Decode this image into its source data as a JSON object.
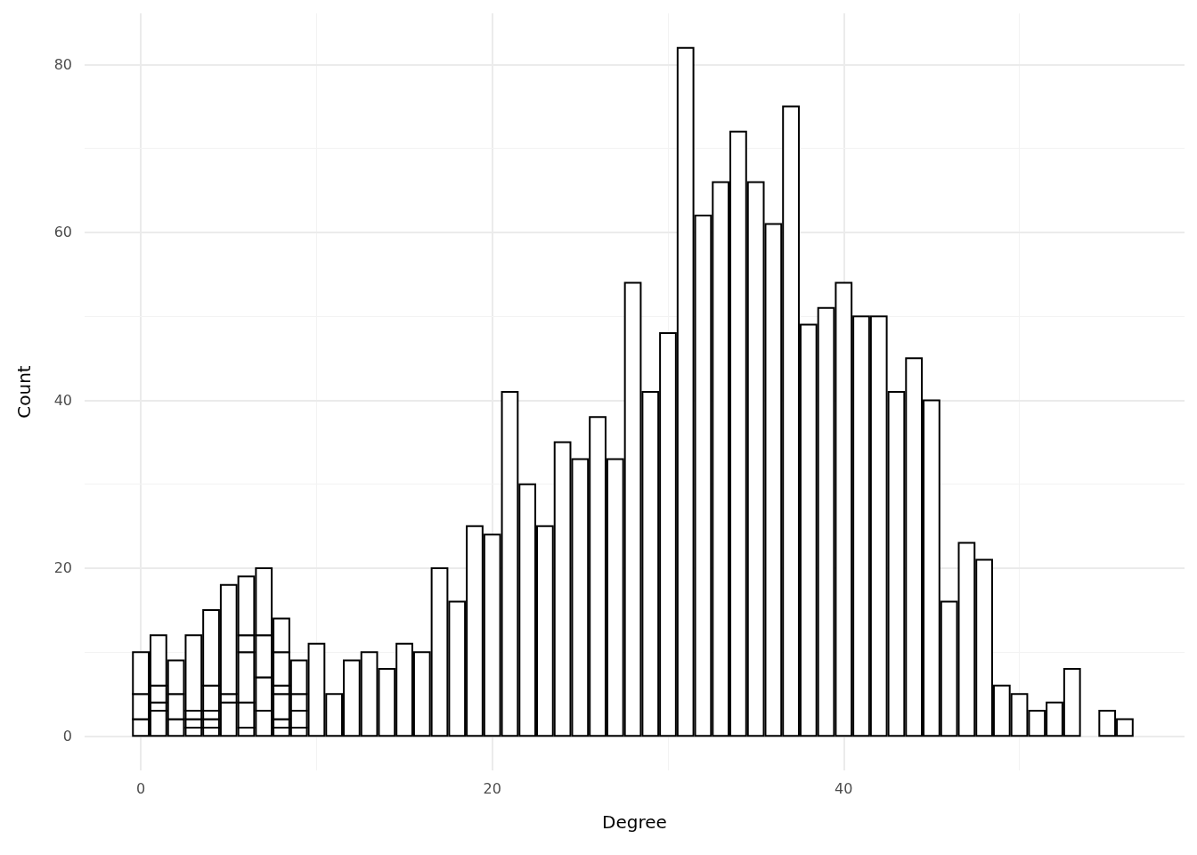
{
  "chart_data": {
    "type": "bar",
    "stacked": true,
    "xlabel": "Degree",
    "ylabel": "Count",
    "x": [
      0,
      1,
      2,
      3,
      4,
      5,
      6,
      7,
      8,
      9,
      10,
      11,
      12,
      13,
      14,
      15,
      16,
      17,
      18,
      19,
      20,
      21,
      22,
      23,
      24,
      25,
      26,
      27,
      28,
      29,
      30,
      31,
      32,
      33,
      34,
      35,
      36,
      37,
      38,
      39,
      40,
      41,
      42,
      43,
      44,
      45,
      46,
      47,
      48,
      49,
      50,
      51,
      52,
      53,
      54,
      55,
      56
    ],
    "series": [
      {
        "color": "#ffffff",
        "values": [
          2,
          3,
          2,
          1,
          1,
          4,
          1,
          3,
          1,
          1,
          11,
          5,
          9,
          10,
          8,
          11,
          10,
          20,
          16,
          25,
          24,
          41,
          30,
          25,
          35,
          33,
          38,
          33,
          54,
          41,
          48,
          82,
          62,
          66,
          72,
          66,
          61,
          75,
          49,
          51,
          54,
          50,
          50,
          41,
          45,
          40,
          16,
          23,
          21,
          6,
          5,
          3,
          4,
          8,
          null,
          3,
          2
        ]
      },
      {
        "color": "#ffffff",
        "values": [
          3,
          1,
          3,
          1,
          1,
          1,
          3,
          4,
          1,
          2,
          null,
          null,
          null,
          null,
          null,
          null,
          null,
          null,
          null,
          null,
          null,
          null,
          null,
          null,
          null,
          null,
          null,
          null,
          null,
          null,
          null,
          null,
          null,
          null,
          null,
          null,
          null,
          null,
          null,
          null,
          null,
          null,
          null,
          null,
          null,
          null,
          null,
          null,
          null,
          null,
          null,
          null,
          null,
          null,
          null,
          null,
          null
        ]
      },
      {
        "color": "#ffffff",
        "values": [
          5,
          2,
          4,
          1,
          1,
          13,
          6,
          5,
          3,
          2,
          null,
          null,
          null,
          null,
          null,
          null,
          null,
          null,
          null,
          null,
          null,
          null,
          null,
          null,
          null,
          null,
          null,
          null,
          null,
          null,
          null,
          null,
          null,
          null,
          null,
          null,
          null,
          null,
          null,
          null,
          null,
          null,
          null,
          null,
          null,
          null,
          null,
          null,
          null,
          null,
          null,
          null,
          null,
          null,
          null,
          null,
          null
        ]
      },
      {
        "color": "#ffffff",
        "values": [
          null,
          6,
          null,
          9,
          3,
          null,
          2,
          8,
          1,
          4,
          null,
          null,
          null,
          null,
          null,
          null,
          null,
          null,
          null,
          null,
          null,
          null,
          null,
          null,
          null,
          null,
          null,
          null,
          null,
          null,
          null,
          null,
          null,
          null,
          null,
          null,
          null,
          null,
          null,
          null,
          null,
          null,
          null,
          null,
          null,
          null,
          null,
          null,
          null,
          null,
          null,
          null,
          null,
          null,
          null,
          null,
          null
        ]
      },
      {
        "color": "#ffffff",
        "values": [
          null,
          null,
          null,
          null,
          9,
          null,
          7,
          null,
          4,
          null,
          null,
          null,
          null,
          null,
          null,
          null,
          null,
          null,
          null,
          null,
          null,
          null,
          null,
          null,
          null,
          null,
          null,
          null,
          null,
          null,
          null,
          null,
          null,
          null,
          null,
          null,
          null,
          null,
          null,
          null,
          null,
          null,
          null,
          null,
          null,
          null,
          null,
          null,
          null,
          null,
          null,
          null,
          null,
          null,
          null,
          null,
          null
        ]
      },
      {
        "color": "#ffffff",
        "values": [
          null,
          null,
          null,
          null,
          null,
          null,
          null,
          null,
          4,
          null,
          null,
          null,
          null,
          null,
          null,
          null,
          null,
          null,
          null,
          null,
          null,
          null,
          null,
          null,
          null,
          null,
          null,
          null,
          null,
          null,
          null,
          null,
          null,
          null,
          null,
          null,
          null,
          null,
          null,
          null,
          null,
          null,
          null,
          null,
          null,
          null,
          null,
          null,
          null,
          null,
          null,
          null,
          null,
          null,
          null,
          null,
          null
        ]
      }
    ],
    "xlim": [
      -3.2,
      59.4
    ],
    "xticks": [
      0,
      {
        "value": 10,
        "label": null
      },
      20,
      {
        "value": 30,
        "label": null
      },
      40,
      {
        "value": 50,
        "label": null
      }
    ],
    "ylim": [
      -4.1,
      86.1
    ],
    "yticks": [
      0,
      {
        "value": 10,
        "label": null
      },
      20,
      {
        "value": 30,
        "label": null
      },
      40,
      {
        "value": 50,
        "label": null
      },
      60,
      {
        "value": 70,
        "label": null
      },
      80
    ],
    "grid": true
  }
}
